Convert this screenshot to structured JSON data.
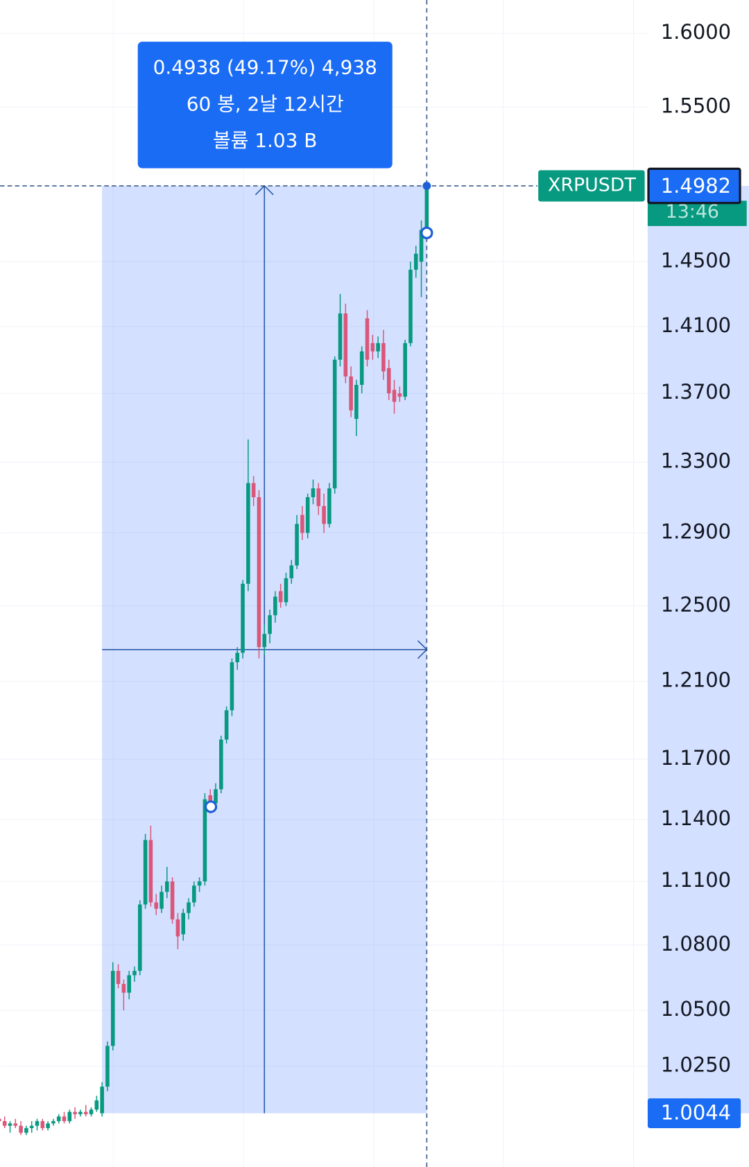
{
  "chart_data": {
    "type": "candlestick",
    "symbol": "XRPUSDT",
    "log_scale": true,
    "grid": true,
    "up_color": "#089981",
    "down_color": "#d9577a",
    "ylim": [
      0.9814,
      1.6232
    ],
    "yticks": [
      {
        "value": 1.6,
        "label": "1.6000"
      },
      {
        "value": 1.55,
        "label": "1.5500"
      },
      {
        "value": 1.45,
        "label": "1.4500"
      },
      {
        "value": 1.41,
        "label": "1.4100"
      },
      {
        "value": 1.37,
        "label": "1.3700"
      },
      {
        "value": 1.33,
        "label": "1.3300"
      },
      {
        "value": 1.29,
        "label": "1.2900"
      },
      {
        "value": 1.25,
        "label": "1.2500"
      },
      {
        "value": 1.21,
        "label": "1.2100"
      },
      {
        "value": 1.17,
        "label": "1.1700"
      },
      {
        "value": 1.14,
        "label": "1.1400"
      },
      {
        "value": 1.11,
        "label": "1.1100"
      },
      {
        "value": 1.08,
        "label": "1.0800"
      },
      {
        "value": 1.05,
        "label": "1.0500"
      },
      {
        "value": 1.025,
        "label": "1.0250"
      }
    ],
    "last_price": {
      "value": 1.4982,
      "label": "1.4982"
    },
    "countdown": "13:46",
    "range_low": {
      "value": 1.0044,
      "label": "1.0044"
    },
    "measure": {
      "start_index": 19,
      "end_index": 79,
      "lines": [
        "0.4938 (49.17%) 4,938",
        "60 봉, 2날 12시간",
        "볼륨 1.03 B"
      ]
    },
    "candles": [
      [
        1.002,
        1.004,
        0.999,
        1.001
      ],
      [
        1.001,
        1.003,
        0.998,
        0.999
      ],
      [
        0.999,
        1.001,
        0.996,
        1.0
      ],
      [
        1.0,
        1.002,
        0.998,
        0.999
      ],
      [
        0.999,
        1.001,
        0.995,
        0.996
      ],
      [
        0.996,
        0.999,
        0.995,
        0.998
      ],
      [
        0.998,
        1.001,
        0.996,
        0.999
      ],
      [
        0.999,
        1.002,
        0.997,
        1.001
      ],
      [
        1.001,
        1.002,
        0.997,
        0.998
      ],
      [
        0.998,
        1.001,
        0.997,
        1.0
      ],
      [
        1.0,
        1.002,
        0.999,
        1.001
      ],
      [
        1.001,
        1.004,
        1.0,
        1.003
      ],
      [
        1.003,
        1.005,
        1.0,
        1.001
      ],
      [
        1.001,
        1.006,
        1.0,
        1.005
      ],
      [
        1.005,
        1.007,
        1.002,
        1.004
      ],
      [
        1.004,
        1.006,
        1.003,
        1.005
      ],
      [
        1.005,
        1.008,
        1.003,
        1.004
      ],
      [
        1.004,
        1.007,
        1.003,
        1.006
      ],
      [
        1.006,
        1.012,
        1.005,
        1.01
      ],
      [
        1.0044,
        1.018,
        1.003,
        1.016
      ],
      [
        1.016,
        1.036,
        1.014,
        1.034
      ],
      [
        1.034,
        1.072,
        1.032,
        1.068
      ],
      [
        1.068,
        1.071,
        1.06,
        1.062
      ],
      [
        1.062,
        1.064,
        1.05,
        1.058
      ],
      [
        1.058,
        1.068,
        1.055,
        1.066
      ],
      [
        1.066,
        1.07,
        1.063,
        1.068
      ],
      [
        1.068,
        1.101,
        1.066,
        1.099
      ],
      [
        1.099,
        1.133,
        1.097,
        1.13
      ],
      [
        1.13,
        1.137,
        1.098,
        1.1
      ],
      [
        1.1,
        1.104,
        1.094,
        1.097
      ],
      [
        1.097,
        1.108,
        1.095,
        1.105
      ],
      [
        1.105,
        1.117,
        1.102,
        1.11
      ],
      [
        1.11,
        1.112,
        1.09,
        1.092
      ],
      [
        1.092,
        1.095,
        1.078,
        1.084
      ],
      [
        1.085,
        1.097,
        1.082,
        1.095
      ],
      [
        1.095,
        1.102,
        1.092,
        1.1
      ],
      [
        1.1,
        1.11,
        1.098,
        1.108
      ],
      [
        1.108,
        1.112,
        1.105,
        1.11
      ],
      [
        1.11,
        1.153,
        1.108,
        1.15
      ],
      [
        1.152,
        1.155,
        1.143,
        1.148
      ],
      [
        1.148,
        1.158,
        1.146,
        1.155
      ],
      [
        1.155,
        1.182,
        1.153,
        1.18
      ],
      [
        1.18,
        1.197,
        1.178,
        1.195
      ],
      [
        1.195,
        1.222,
        1.192,
        1.22
      ],
      [
        1.22,
        1.228,
        1.216,
        1.225
      ],
      [
        1.225,
        1.264,
        1.222,
        1.262
      ],
      [
        1.262,
        1.343,
        1.258,
        1.318
      ],
      [
        1.318,
        1.322,
        1.305,
        1.31
      ],
      [
        1.31,
        1.314,
        1.222,
        1.228
      ],
      [
        1.228,
        1.24,
        1.224,
        1.235
      ],
      [
        1.235,
        1.248,
        1.23,
        1.245
      ],
      [
        1.245,
        1.258,
        1.241,
        1.255
      ],
      [
        1.258,
        1.262,
        1.249,
        1.252
      ],
      [
        1.252,
        1.268,
        1.25,
        1.265
      ],
      [
        1.265,
        1.275,
        1.262,
        1.272
      ],
      [
        1.272,
        1.3,
        1.27,
        1.295
      ],
      [
        1.3,
        1.305,
        1.286,
        1.29
      ],
      [
        1.29,
        1.312,
        1.287,
        1.31
      ],
      [
        1.31,
        1.32,
        1.306,
        1.315
      ],
      [
        1.315,
        1.318,
        1.3,
        1.305
      ],
      [
        1.305,
        1.312,
        1.29,
        1.295
      ],
      [
        1.295,
        1.318,
        1.293,
        1.315
      ],
      [
        1.315,
        1.392,
        1.312,
        1.39
      ],
      [
        1.39,
        1.43,
        1.386,
        1.418
      ],
      [
        1.418,
        1.424,
        1.376,
        1.38
      ],
      [
        1.38,
        1.386,
        1.356,
        1.36
      ],
      [
        1.355,
        1.378,
        1.345,
        1.375
      ],
      [
        1.375,
        1.398,
        1.37,
        1.395
      ],
      [
        1.415,
        1.42,
        1.386,
        1.39
      ],
      [
        1.4,
        1.405,
        1.39,
        1.395
      ],
      [
        1.395,
        1.404,
        1.391,
        1.4
      ],
      [
        1.4,
        1.408,
        1.378,
        1.383
      ],
      [
        1.385,
        1.39,
        1.366,
        1.37
      ],
      [
        1.372,
        1.378,
        1.358,
        1.365
      ],
      [
        1.37,
        1.374,
        1.365,
        1.368
      ],
      [
        1.368,
        1.402,
        1.366,
        1.4
      ],
      [
        1.4,
        1.45,
        1.398,
        1.445
      ],
      [
        1.445,
        1.46,
        1.44,
        1.455
      ],
      [
        1.45,
        1.476,
        1.428,
        1.47
      ],
      [
        1.47,
        1.4982,
        1.466,
        1.4982
      ]
    ]
  }
}
